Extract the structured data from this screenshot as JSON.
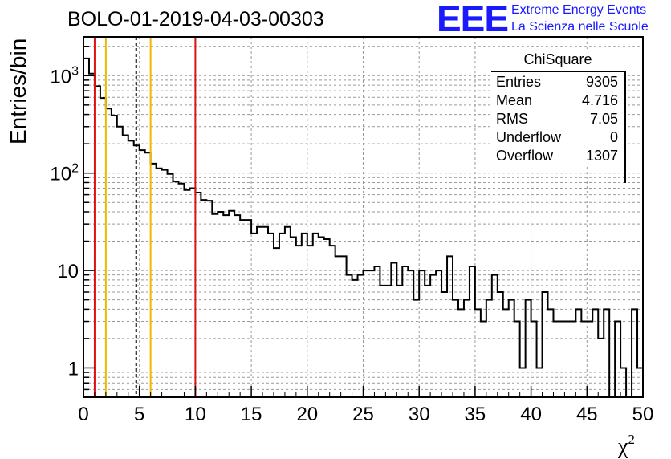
{
  "header": {
    "title": "BOLO-01-2019-04-03-00303",
    "logo_text": "EEE",
    "logo_line1": "Extreme Energy Events",
    "logo_line2": "La Scienza nelle Scuole"
  },
  "stats_box": {
    "title": "ChiSquare",
    "rows": [
      {
        "label": "Entries",
        "value": "9305"
      },
      {
        "label": "Mean",
        "value": "4.716"
      },
      {
        "label": "RMS",
        "value": "7.05"
      },
      {
        "label": "Underflow",
        "value": "0"
      },
      {
        "label": "Overflow",
        "value": "1307"
      }
    ]
  },
  "colors": {
    "histogram": "#000000",
    "red_line": "#dd1111",
    "orange_line": "#f0b800",
    "grid": "#999999",
    "logo": "#1a1aff"
  },
  "chart_data": {
    "type": "histogram",
    "title": "BOLO-01-2019-04-03-00303",
    "xlabel": "χ²",
    "ylabel": "Entries/bin",
    "xlim": [
      0,
      50
    ],
    "ylim": [
      0.5,
      2500
    ],
    "y_scale": "log",
    "grid": true,
    "bin_width": 0.5,
    "x_ticks": [
      0,
      5,
      10,
      15,
      20,
      25,
      30,
      35,
      40,
      45,
      50
    ],
    "y_tick_labels": [
      "1",
      "10",
      "10^2",
      "10^3"
    ],
    "bin_edges_start": 0,
    "values": [
      1500,
      1050,
      780,
      590,
      460,
      390,
      300,
      245,
      215,
      192,
      172,
      162,
      125,
      112,
      108,
      98,
      82,
      78,
      67,
      70,
      63,
      53,
      52,
      38,
      40,
      37,
      41,
      37,
      33,
      33,
      24,
      28,
      28,
      24,
      17,
      24,
      28,
      22,
      18,
      24,
      18,
      24,
      22,
      21,
      18,
      14,
      14,
      9,
      8,
      9,
      10,
      10,
      11,
      7,
      7,
      12,
      7,
      11,
      10,
      5,
      10,
      7,
      9,
      10,
      6,
      14,
      5,
      4,
      5,
      11,
      4,
      3,
      5,
      9,
      6,
      4,
      5,
      3,
      1,
      5,
      3,
      1,
      6,
      4,
      3,
      3,
      3,
      3,
      4,
      3,
      3,
      4,
      2,
      4,
      0,
      3,
      1,
      0,
      4,
      1
    ],
    "vertical_lines": [
      {
        "x": 1.0,
        "color": "red",
        "style": "solid"
      },
      {
        "x": 2.0,
        "color": "orange",
        "style": "solid"
      },
      {
        "x": 4.716,
        "color": "black",
        "style": "dashed"
      },
      {
        "x": 6.0,
        "color": "orange",
        "style": "solid"
      },
      {
        "x": 10.0,
        "color": "red",
        "style": "solid"
      }
    ]
  }
}
